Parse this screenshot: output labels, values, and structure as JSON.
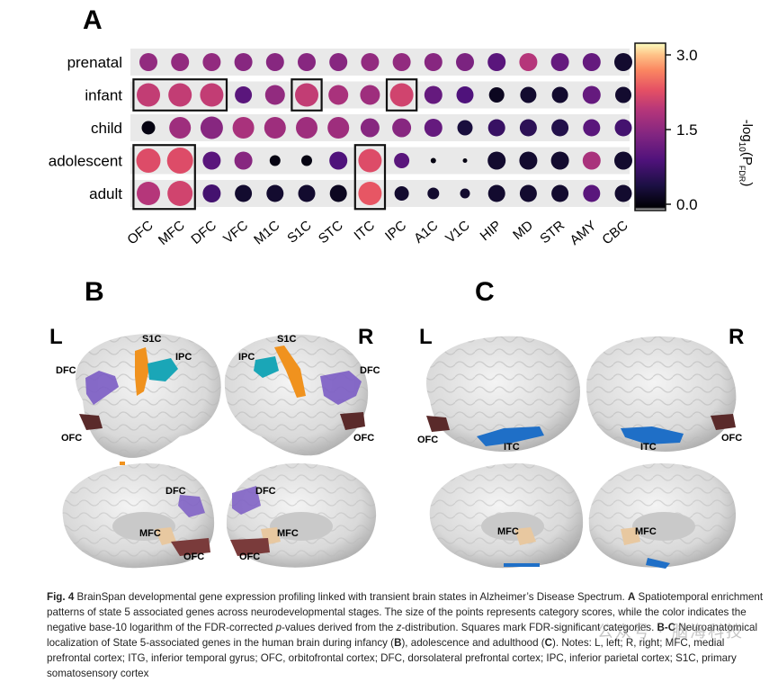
{
  "panel_labels": {
    "a": "A",
    "b": "B",
    "c": "C"
  },
  "chart_data": {
    "type": "dot-heatmap",
    "rows": [
      "prenatal",
      "infant",
      "child",
      "adolescent",
      "adult"
    ],
    "columns": [
      "OFC",
      "MFC",
      "DFC",
      "VFC",
      "M1C",
      "S1C",
      "STC",
      "ITC",
      "IPC",
      "A1C",
      "V1C",
      "HIP",
      "MD",
      "STR",
      "AMY",
      "CBC"
    ],
    "values": [
      [
        1.5,
        1.5,
        1.5,
        1.4,
        1.4,
        1.4,
        1.4,
        1.5,
        1.5,
        1.4,
        1.3,
        1.0,
        1.8,
        1.1,
        1.1,
        0.3
      ],
      [
        1.9,
        1.9,
        1.9,
        1.0,
        1.5,
        1.9,
        1.7,
        1.6,
        2.0,
        1.1,
        0.9,
        0.2,
        0.3,
        0.3,
        1.1,
        0.3
      ],
      [
        0.1,
        1.6,
        1.4,
        1.7,
        1.6,
        1.6,
        1.6,
        1.4,
        1.4,
        1.1,
        0.4,
        0.7,
        0.6,
        0.5,
        1.0,
        0.8
      ],
      [
        2.1,
        2.1,
        1.0,
        1.4,
        0.1,
        0.1,
        0.9,
        2.1,
        1.0,
        0.1,
        0.1,
        0.3,
        0.3,
        0.3,
        1.7,
        0.3
      ],
      [
        1.8,
        2.0,
        0.8,
        0.3,
        0.3,
        0.3,
        0.2,
        2.2,
        0.3,
        0.3,
        0.3,
        0.3,
        0.3,
        0.3,
        1.0,
        0.3
      ]
    ],
    "sizes": [
      [
        1.0,
        1.0,
        1.0,
        1.0,
        1.0,
        1.0,
        1.0,
        1.0,
        1.0,
        1.0,
        1.0,
        1.0,
        1.0,
        1.0,
        1.0,
        1.0
      ],
      [
        1.3,
        1.3,
        1.3,
        0.95,
        1.1,
        1.3,
        1.1,
        1.1,
        1.3,
        1.0,
        0.95,
        0.85,
        0.9,
        0.9,
        1.0,
        0.9
      ],
      [
        0.75,
        1.2,
        1.25,
        1.2,
        1.2,
        1.2,
        1.2,
        1.05,
        1.05,
        1.0,
        0.85,
        0.95,
        0.95,
        0.95,
        0.95,
        0.95
      ],
      [
        1.35,
        1.45,
        1.0,
        1.0,
        0.6,
        0.6,
        1.0,
        1.3,
        0.85,
        0.3,
        0.25,
        1.0,
        1.0,
        1.0,
        1.0,
        1.0
      ],
      [
        1.3,
        1.4,
        1.0,
        0.95,
        0.95,
        0.95,
        0.95,
        1.3,
        0.8,
        0.65,
        0.55,
        0.95,
        0.95,
        0.95,
        0.95,
        0.95
      ]
    ],
    "significant": [
      {
        "row": "infant",
        "cols": [
          "OFC",
          "MFC",
          "DFC"
        ]
      },
      {
        "row": "infant",
        "cols": [
          "S1C"
        ]
      },
      {
        "row": "infant",
        "cols": [
          "IPC"
        ]
      },
      {
        "row": "adolescent",
        "cols": [
          "OFC",
          "MFC"
        ],
        "span_rows": 2
      },
      {
        "row": "adolescent",
        "cols": [
          "ITC"
        ],
        "span_rows": 2
      }
    ],
    "colorbar": {
      "label_main": "-log",
      "label_sub": "10",
      "label_p": "(P",
      "label_fdr": "FDR",
      "label_close": ")",
      "ticks": [
        "3.0",
        "1.5",
        "0.0"
      ],
      "min": 0.0,
      "max": 3.0
    }
  },
  "brain_panels": {
    "b": {
      "left": "L",
      "right": "R",
      "labels": [
        "S1C",
        "IPC",
        "DFC",
        "OFC",
        "S1C",
        "IPC",
        "DFC",
        "OFC",
        "DFC",
        "MFC",
        "OFC",
        "DFC",
        "MFC",
        "OFC"
      ]
    },
    "c": {
      "left": "L",
      "right": "R",
      "labels": [
        "OFC",
        "ITC",
        "ITC",
        "OFC",
        "MFC",
        "MFC"
      ]
    }
  },
  "colors": {
    "ofc": "#5a2a2a",
    "dfc": "#7b5cc4",
    "s1c": "#f0921e",
    "ipc": "#1aa6b7",
    "itc": "#1f6fc7",
    "mfc": "#e8c8a0"
  },
  "caption": {
    "fig": "Fig. 4",
    "title": " BrainSpan developmental gene expression profiling linked with transient brain states in Alzheimer’s Disease Spectrum. ",
    "a_label": "A",
    "a_text1": " Spatiotemporal enrichment patterns of state 5 associated genes across neurodevelopmental stages. The size of the points represents category scores, while the color indicates the negative base-10 logarithm of the FDR-corrected ",
    "p_italic": "p",
    "a_text2": "-values derived from the ",
    "z_italic": "z",
    "a_text3": "-distribution. Squares mark FDR-significant categories. ",
    "bc_label": "B-C",
    "bc_text1": " Neuroanatomical localization of State 5-associated genes in the human brain during infancy (",
    "b_bold": "B",
    "bc_text2": "), adolescence and adulthood (",
    "c_bold": "C",
    "bc_text3": "). Notes: L, left; R, right; MFC, medial prefrontal cortex; ITG, inferior temporal gyrus; OFC, orbitofrontal cortex; DFC, dorsolateral prefrontal cortex; IPC, inferior parietal cortex; S1C, primary somatosensory cortex"
  },
  "watermark": "公众号 · 脑海科技"
}
